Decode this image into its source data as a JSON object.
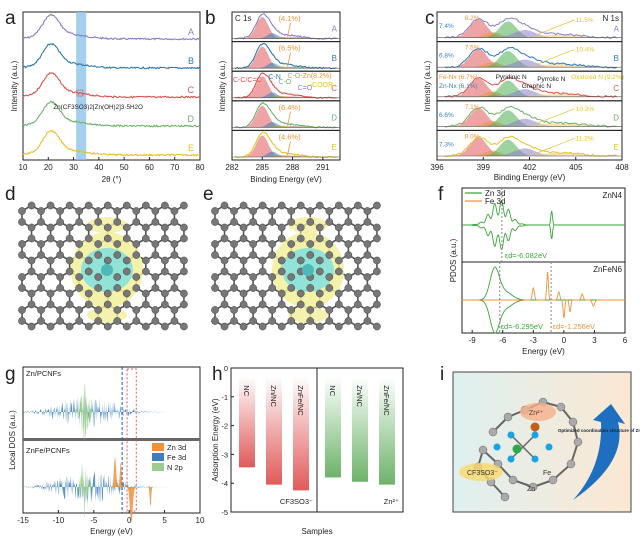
{
  "panel_labels": [
    "a",
    "b",
    "c",
    "d",
    "e",
    "f",
    "g",
    "h",
    "i"
  ],
  "colors": {
    "A": "#8b7fc7",
    "B": "#2e78b7",
    "C": "#d9534f",
    "D": "#6db36a",
    "E": "#e8c02a",
    "orange": "#f0923a",
    "band": "#8ec3ea",
    "zn": "#3aa63a",
    "fe": "#f0923a",
    "nfill": "#9ccc8f"
  },
  "chart_data": [
    {
      "panel": "a",
      "type": "line",
      "xlabel": "2θ (°)",
      "ylabel": "Intensity (a.u.)",
      "xlim": [
        10,
        80
      ],
      "xticks": [
        10,
        20,
        30,
        40,
        50,
        60,
        70,
        80
      ],
      "series": [
        {
          "name": "A",
          "peak": 21
        },
        {
          "name": "B",
          "peak": 21
        },
        {
          "name": "C",
          "peak": 21
        },
        {
          "name": "D",
          "peak": 21
        },
        {
          "name": "E",
          "peak": 21
        }
      ],
      "highlight_band": [
        31,
        35
      ],
      "annotation": "Zn(CF3SO3)2[Zn(OH)2]3·5H2O",
      "grid": false
    },
    {
      "panel": "b",
      "type": "area",
      "title": "C 1s",
      "xlabel": "Binding Energy (eV)",
      "ylabel": "Intensity (a.u.)",
      "xlim": [
        282,
        292.7
      ],
      "xticks": [
        282,
        285,
        288,
        291
      ],
      "series": [
        {
          "name": "A",
          "c_o_zn": "(4.1%)"
        },
        {
          "name": "B",
          "c_o_zn": "(6.5%)"
        },
        {
          "name": "C",
          "c_o_zn": "C-O-Zn(8.2%)"
        },
        {
          "name": "D",
          "c_o_zn": "(6.4%)"
        },
        {
          "name": "E",
          "c_o_zn": "(4.6%)"
        }
      ],
      "peak_labels": [
        "C-C/C=C",
        "C-N",
        "C-O",
        "C=O",
        "-COOR"
      ]
    },
    {
      "panel": "c",
      "type": "area",
      "title": "N 1s",
      "xlabel": "Binding Energy (eV)",
      "ylabel": "Intensity (a.u.)",
      "xlim": [
        396,
        408
      ],
      "xticks": [
        396,
        399,
        402,
        405,
        408
      ],
      "series": [
        {
          "name": "A",
          "fe": "8.2%",
          "zn": "7.4%",
          "ox": "11.5%"
        },
        {
          "name": "B",
          "fe": "7.5%",
          "zn": "6.8%",
          "ox": "10.4%"
        },
        {
          "name": "C",
          "fe": "Fe-Nx (6.7%)",
          "zn": "Zn-Nx (6.1%)",
          "ox": "Oxidized N (9.2%)"
        },
        {
          "name": "D",
          "fe": "7.1%",
          "zn": "6.6%",
          "ox": "10.3%"
        },
        {
          "name": "E",
          "fe": "8.0%",
          "zn": "7.3%",
          "ox": "11.2%"
        }
      ],
      "peak_labels": [
        "Pyridinic N",
        "Pyrrolic N",
        "Graphic N"
      ]
    },
    {
      "panel": "f",
      "type": "line",
      "xlabel": "Energy (eV)",
      "ylabel": "PDOS (a.u.)",
      "xlim": [
        -10,
        6
      ],
      "xticks": [
        -9,
        -6,
        -3,
        0,
        3,
        6
      ],
      "legend": [
        "Zn 3d",
        "Fe 3d"
      ],
      "subplots": [
        {
          "name": "ZnN4",
          "ed": [
            "εd=-6.082eV"
          ],
          "ed_values": [
            -6.082
          ]
        },
        {
          "name": "ZnFeN6",
          "ed": [
            "εd=-6.295eV",
            "εd=-1.256eV"
          ],
          "ed_values": [
            -6.295,
            -1.256
          ]
        }
      ]
    },
    {
      "panel": "g",
      "type": "area",
      "xlabel": "Energy (eV)",
      "ylabel": "Local DOS (a.u.)",
      "xlim": [
        -15,
        10
      ],
      "xticks": [
        -15,
        -10,
        -5,
        0,
        5,
        10
      ],
      "legend": [
        "Zn 3d",
        "Fe 3d",
        "N 2p"
      ],
      "subplots": [
        "Zn/PCNFs",
        "ZnFe/PCNFs"
      ]
    },
    {
      "panel": "h",
      "type": "bar",
      "xlabel": "Samples",
      "ylabel": "Adsorption Energy (eV)",
      "ylim": [
        -5,
        0
      ],
      "yticks": [
        0,
        -1,
        -2,
        -3,
        -4,
        -5
      ],
      "groups": [
        {
          "name": "CF3SO3⁻",
          "categories": [
            "NC",
            "Zn/NC",
            "ZnFe/NC"
          ],
          "values": [
            -3.45,
            -4.05,
            -4.25
          ]
        },
        {
          "name": "Zn²⁺",
          "categories": [
            "NC",
            "Zn/NC",
            "ZnFe/NC"
          ],
          "values": [
            -3.8,
            -3.95,
            -4.05
          ]
        }
      ]
    }
  ],
  "schematic_i": {
    "labels": [
      "Zn²⁺",
      "CF3SO3⁻",
      "Fe",
      "Zn",
      "Optimized coordination structure of ZnFeNx"
    ]
  }
}
